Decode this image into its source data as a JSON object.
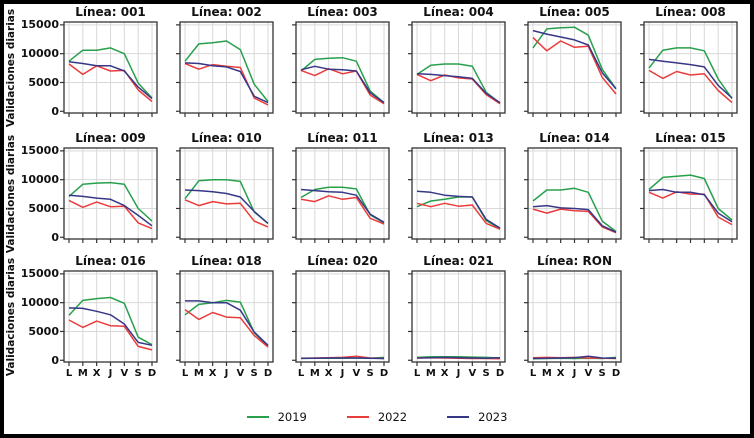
{
  "chart_data": {
    "type": "line",
    "grid": "on",
    "ylabel": "Validaciones diarias",
    "x_categories": [
      "L",
      "M",
      "X",
      "J",
      "V",
      "S",
      "D"
    ],
    "yticks": [
      15000,
      10000,
      5000,
      0
    ],
    "ytick_labels": [
      "15000",
      "10000",
      "5000",
      "0"
    ],
    "ylim": [
      0,
      15500
    ],
    "series_colors": [
      "#28a04b",
      "#eb3c3c",
      "#373787"
    ],
    "legend": {
      "position": "bottom-center",
      "items": [
        {
          "label": "2019",
          "color": "#28a04b"
        },
        {
          "label": "2022",
          "color": "#eb3c3c"
        },
        {
          "label": "2023",
          "color": "#373787"
        }
      ]
    },
    "subplots": [
      {
        "title": "Línea: 001",
        "series": [
          {
            "name": "2019",
            "values": [
              8700,
              10600,
              10600,
              11000,
              10000,
              4900,
              2300
            ]
          },
          {
            "name": "2022",
            "values": [
              8200,
              6400,
              7900,
              7000,
              7100,
              3700,
              1700
            ]
          },
          {
            "name": "2023",
            "values": [
              8600,
              8300,
              7900,
              7900,
              7000,
              4200,
              2200
            ]
          }
        ]
      },
      {
        "title": "Línea: 002",
        "series": [
          {
            "name": "2019",
            "values": [
              8700,
              11700,
              11900,
              12200,
              10700,
              4700,
              1700
            ]
          },
          {
            "name": "2022",
            "values": [
              8300,
              7300,
              8100,
              7800,
              7600,
              2300,
              1100
            ]
          },
          {
            "name": "2023",
            "values": [
              8400,
              8300,
              7900,
              7700,
              6900,
              2600,
              1500
            ]
          }
        ]
      },
      {
        "title": "Línea: 003",
        "series": [
          {
            "name": "2019",
            "values": [
              7000,
              9000,
              9200,
              9300,
              8700,
              3500,
              1500
            ]
          },
          {
            "name": "2022",
            "values": [
              7100,
              6200,
              7400,
              6500,
              7000,
              2800,
              1300
            ]
          },
          {
            "name": "2023",
            "values": [
              7200,
              7800,
              7300,
              7200,
              7000,
              3200,
              1500
            ]
          }
        ]
      },
      {
        "title": "Línea: 004",
        "series": [
          {
            "name": "2019",
            "values": [
              6400,
              8000,
              8200,
              8200,
              7800,
              3300,
              1400
            ]
          },
          {
            "name": "2022",
            "values": [
              6400,
              5300,
              6300,
              5800,
              5600,
              2900,
              1300
            ]
          },
          {
            "name": "2023",
            "values": [
              6500,
              6400,
              6200,
              6000,
              5700,
              3100,
              1500
            ]
          }
        ]
      },
      {
        "title": "Línea: 005",
        "series": [
          {
            "name": "2019",
            "values": [
              11000,
              14300,
              14500,
              14600,
              13200,
              7300,
              3900
            ]
          },
          {
            "name": "2022",
            "values": [
              12800,
              10500,
              12200,
              11100,
              11300,
              5900,
              3000
            ]
          },
          {
            "name": "2023",
            "values": [
              14000,
              13400,
              12900,
              12400,
              11500,
              6700,
              3900
            ]
          }
        ]
      },
      {
        "title": "Línea: 008",
        "series": [
          {
            "name": "2019",
            "values": [
              7500,
              10600,
              11000,
              11000,
              10500,
              5600,
              2200
            ]
          },
          {
            "name": "2022",
            "values": [
              7100,
              5700,
              6900,
              6300,
              6500,
              3600,
              1500
            ]
          },
          {
            "name": "2023",
            "values": [
              9000,
              8700,
              8400,
              8100,
              7700,
              4500,
              2300
            ]
          }
        ]
      },
      {
        "title": "Línea: 009",
        "series": [
          {
            "name": "2019",
            "values": [
              7100,
              9200,
              9400,
              9500,
              9200,
              5000,
              2800
            ]
          },
          {
            "name": "2022",
            "values": [
              6400,
              5200,
              6100,
              5300,
              5400,
              2500,
              1500
            ]
          },
          {
            "name": "2023",
            "values": [
              7300,
              7100,
              6800,
              6600,
              5500,
              3800,
              2000
            ]
          }
        ]
      },
      {
        "title": "Línea: 010",
        "series": [
          {
            "name": "2019",
            "values": [
              6700,
              9800,
              10000,
              10000,
              9700,
              4400,
              2400
            ]
          },
          {
            "name": "2022",
            "values": [
              6500,
              5500,
              6200,
              5800,
              5900,
              2800,
              1800
            ]
          },
          {
            "name": "2023",
            "values": [
              8200,
              8100,
              7900,
              7600,
              7000,
              4500,
              2400
            ]
          }
        ]
      },
      {
        "title": "Línea: 011",
        "series": [
          {
            "name": "2019",
            "values": [
              6900,
              8300,
              8700,
              8700,
              8400,
              3900,
              2500
            ]
          },
          {
            "name": "2022",
            "values": [
              6600,
              6200,
              7200,
              6600,
              6900,
              3300,
              2300
            ]
          },
          {
            "name": "2023",
            "values": [
              8300,
              8100,
              7900,
              7800,
              7300,
              4000,
              2600
            ]
          }
        ]
      },
      {
        "title": "Línea: 013",
        "series": [
          {
            "name": "2019",
            "values": [
              5300,
              6300,
              6600,
              7000,
              7000,
              2900,
              1500
            ]
          },
          {
            "name": "2022",
            "values": [
              5900,
              5300,
              5900,
              5400,
              5600,
              2400,
              1400
            ]
          },
          {
            "name": "2023",
            "values": [
              8000,
              7800,
              7300,
              7100,
              7000,
              3100,
              1600
            ]
          }
        ]
      },
      {
        "title": "Línea: 014",
        "series": [
          {
            "name": "2019",
            "values": [
              6300,
              8200,
              8200,
              8500,
              7800,
              2800,
              1000
            ]
          },
          {
            "name": "2022",
            "values": [
              4900,
              4200,
              4900,
              4600,
              4500,
              1800,
              800
            ]
          },
          {
            "name": "2023",
            "values": [
              5300,
              5500,
              5100,
              5000,
              4800,
              2000,
              900
            ]
          }
        ]
      },
      {
        "title": "Línea: 015",
        "series": [
          {
            "name": "2019",
            "values": [
              8300,
              10400,
              10600,
              10800,
              10200,
              5000,
              3000
            ]
          },
          {
            "name": "2022",
            "values": [
              7800,
              6800,
              7900,
              7500,
              7500,
              3500,
              2200
            ]
          },
          {
            "name": "2023",
            "values": [
              8100,
              8300,
              7800,
              7800,
              7400,
              4200,
              2700
            ]
          }
        ]
      },
      {
        "title": "Línea: 016",
        "series": [
          {
            "name": "2019",
            "values": [
              7800,
              10400,
              10700,
              10900,
              9900,
              4000,
              2700
            ]
          },
          {
            "name": "2022",
            "values": [
              7000,
              5700,
              6800,
              6000,
              5900,
              2400,
              1800
            ]
          },
          {
            "name": "2023",
            "values": [
              9100,
              9000,
              8500,
              7900,
              6300,
              3100,
              2600
            ]
          }
        ]
      },
      {
        "title": "Línea: 018",
        "series": [
          {
            "name": "2019",
            "values": [
              7900,
              9700,
              10000,
              10400,
              10100,
              4800,
              2400
            ]
          },
          {
            "name": "2022",
            "values": [
              8800,
              7100,
              8300,
              7500,
              7400,
              4300,
              2300
            ]
          },
          {
            "name": "2023",
            "values": [
              10300,
              10300,
              10000,
              10000,
              8700,
              4900,
              2600
            ]
          }
        ]
      },
      {
        "title": "Línea: 020",
        "series": [
          {
            "name": "2019",
            "values": [
              300,
              350,
              350,
              350,
              400,
              350,
              500
            ]
          },
          {
            "name": "2022",
            "values": [
              350,
              400,
              450,
              500,
              700,
              400,
              300
            ]
          },
          {
            "name": "2023",
            "values": [
              350,
              350,
              400,
              400,
              400,
              350,
              300
            ]
          }
        ]
      },
      {
        "title": "Línea: 021",
        "series": [
          {
            "name": "2019",
            "values": [
              500,
              600,
              600,
              600,
              550,
              500,
              400
            ]
          },
          {
            "name": "2022",
            "values": [
              400,
              450,
              400,
              350,
              300,
              300,
              250
            ]
          },
          {
            "name": "2023",
            "values": [
              400,
              450,
              500,
              450,
              400,
              350,
              450
            ]
          }
        ]
      },
      {
        "title": "Línea: RON",
        "series": [
          {
            "name": "2019",
            "values": [
              250,
              300,
              350,
              300,
              350,
              300,
              500
            ]
          },
          {
            "name": "2022",
            "values": [
              450,
              500,
              450,
              500,
              400,
              350,
              300
            ]
          },
          {
            "name": "2023",
            "values": [
              300,
              350,
              400,
              450,
              700,
              400,
              350
            ]
          }
        ]
      }
    ]
  }
}
